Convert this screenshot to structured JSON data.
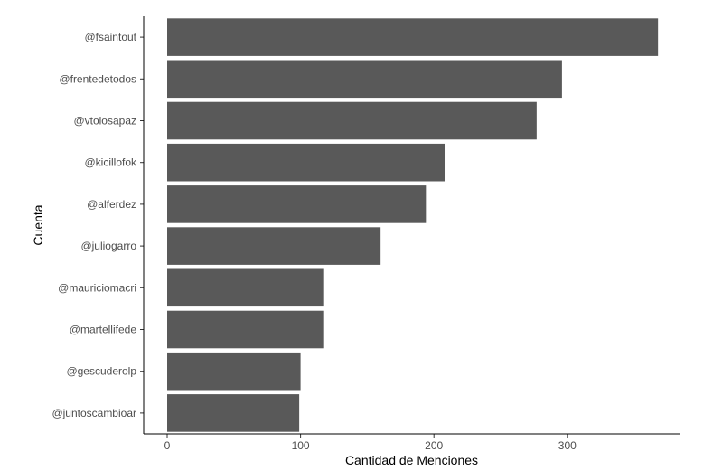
{
  "chart_data": {
    "type": "bar",
    "orientation": "horizontal",
    "title": "",
    "xlabel": "Cantidad de Menciones",
    "ylabel": "Cuenta",
    "categories": [
      "@fsaintout",
      "@frentedetodos",
      "@vtolosapaz",
      "@kicillofok",
      "@alferdez",
      "@juliogarro",
      "@mauriciomacri",
      "@martellifede",
      "@gescuderolp",
      "@juntoscambioar"
    ],
    "values": [
      368,
      296,
      277,
      208,
      194,
      160,
      117,
      117,
      100,
      99
    ],
    "xlim": [
      -17,
      386
    ],
    "xticks": [
      0,
      100,
      200,
      300
    ],
    "grid": false,
    "legend": "none",
    "bar_color": "#595959"
  }
}
